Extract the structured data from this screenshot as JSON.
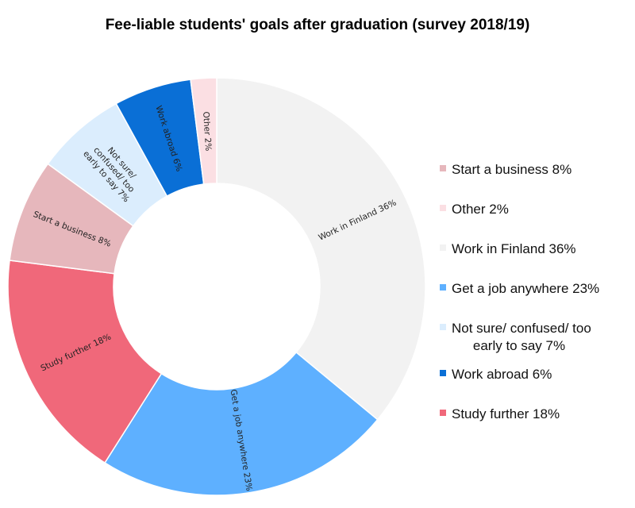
{
  "chart_data": {
    "type": "pie",
    "style": "donut",
    "title": "Fee-liable students' goals after graduation (survey 2018/19)",
    "start_angle_deg": 0,
    "direction": "clockwise",
    "legend_position": "right",
    "slices": [
      {
        "label": "Work in Finland 36%",
        "value": 36,
        "color": "#f2f2f2"
      },
      {
        "label": "Get a job anywhere 23%",
        "value": 23,
        "color": "#5eb0ff"
      },
      {
        "label": "Study further 18%",
        "value": 18,
        "color": "#f0687a"
      },
      {
        "label": "Start a business 8%",
        "value": 8,
        "color": "#e6b7bc"
      },
      {
        "label": "Not sure/ confused/ too early to say 7%",
        "value": 7,
        "color": "#dbedfd"
      },
      {
        "label": "Work abroad 6%",
        "value": 6,
        "color": "#0a6fd6"
      },
      {
        "label": "Other 2%",
        "value": 2,
        "color": "#fbdfe3"
      }
    ],
    "legend": [
      {
        "lines": [
          "Start a business 8%"
        ],
        "color": "#e6b7bc"
      },
      {
        "lines": [
          "Other 2%"
        ],
        "color": "#fbdfe3"
      },
      {
        "lines": [
          "Work in Finland 36%"
        ],
        "color": "#f2f2f2"
      },
      {
        "lines": [
          "Get a job anywhere 23%"
        ],
        "color": "#5eb0ff"
      },
      {
        "lines": [
          "Not sure/ confused/ too",
          "early to say 7%"
        ],
        "color": "#dbedfd"
      },
      {
        "lines": [
          "Work abroad 6%"
        ],
        "color": "#0a6fd6"
      },
      {
        "lines": [
          "Study further 18%"
        ],
        "color": "#f0687a"
      }
    ]
  }
}
